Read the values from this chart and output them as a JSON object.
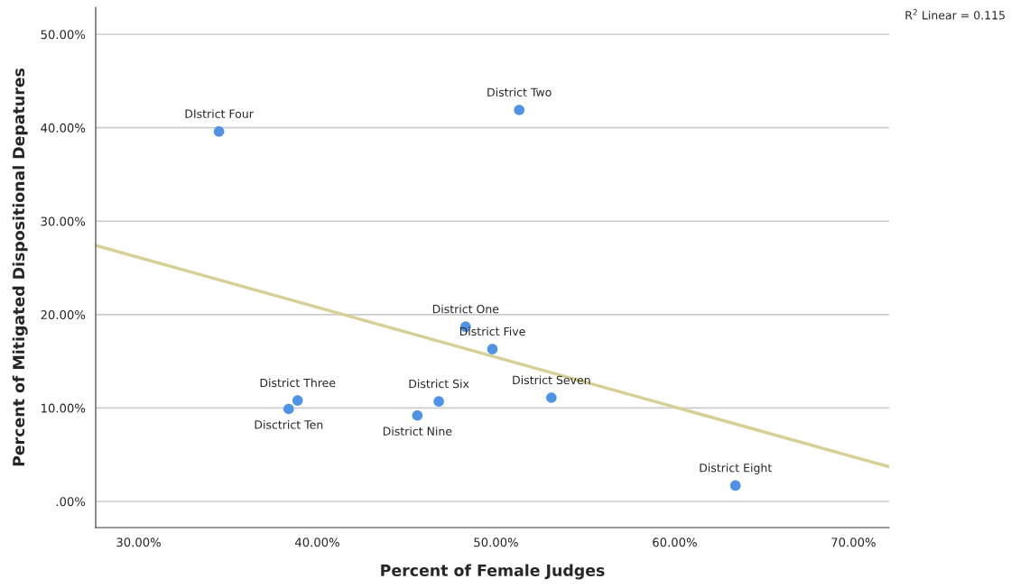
{
  "chart_data": {
    "type": "scatter",
    "xlabel": "Percent of Female Judges",
    "ylabel": "Percent of Mitigated Dispositional Depatures",
    "series": [
      {
        "color": "#4f93e6",
        "marker": "circle",
        "x": [
          48.3,
          51.3,
          38.9,
          34.5,
          49.8,
          46.8,
          53.1,
          63.4,
          45.6,
          38.4
        ],
        "values": [
          18.7,
          41.9,
          10.8,
          39.6,
          16.3,
          10.7,
          11.1,
          1.7,
          9.2,
          9.9
        ]
      },
      {
        "type": "line",
        "color": "#d6cf96",
        "x": [
          27.6,
          72.0
        ],
        "values": [
          27.4,
          3.7
        ]
      }
    ],
    "annotations": [
      {
        "text": "District One",
        "x": 48.3,
        "y": 18.7
      },
      {
        "text": "District Two",
        "x": 51.3,
        "y": 41.9
      },
      {
        "text": "District Three",
        "x": 38.9,
        "y": 10.8
      },
      {
        "text": "DIstrict Four",
        "x": 34.5,
        "y": 39.6
      },
      {
        "text": "District Five",
        "x": 49.8,
        "y": 16.3
      },
      {
        "text": "District Six",
        "x": 46.8,
        "y": 10.7
      },
      {
        "text": "District Seven",
        "x": 53.1,
        "y": 11.1
      },
      {
        "text": "District Eight",
        "x": 63.4,
        "y": 1.7
      },
      {
        "text": "District Nine",
        "x": 45.6,
        "y": 9.2
      },
      {
        "text": "Disctrict Ten",
        "x": 38.4,
        "y": 9.9
      },
      "R$^{2}$ Linear = 0.115"
    ],
    "xlim": [
      27.6,
      72.0
    ],
    "ylim": [
      -2.8,
      52.9
    ],
    "xticks": [
      {
        "value": 30,
        "label": "30.00%"
      },
      {
        "value": 40,
        "label": "40.00%"
      },
      {
        "value": 50,
        "label": "50.00%"
      },
      {
        "value": 60,
        "label": "60.00%"
      },
      {
        "value": 70,
        "label": "70.00%"
      }
    ],
    "yticks": [
      {
        "value": 0,
        "label": ".00%"
      },
      {
        "value": 10,
        "label": "10.00%"
      },
      {
        "value": 20,
        "label": "20.00%"
      },
      {
        "value": 30,
        "label": "30.00%"
      },
      {
        "value": 40,
        "label": "40.00%"
      },
      {
        "value": 50,
        "label": "50.00%"
      }
    ],
    "grid": "y",
    "legend": false
  }
}
